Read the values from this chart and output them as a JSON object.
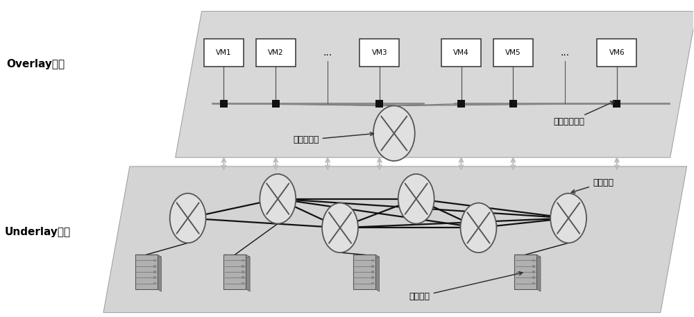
{
  "bg_color": "#ffffff",
  "overlay_panel_color": "#d8d8d8",
  "underlay_panel_color": "#d4d4d4",
  "overlay_label": "Overlay网络",
  "underlay_label": "Underlay网络",
  "logical_router_label": "逻辑路由器",
  "dist_switch_label": "分布式交换机",
  "network_device_label": "网络设备",
  "terminal_device_label": "终端设备",
  "vm_group1": [
    "VM1",
    "VM2",
    "...",
    "VM3"
  ],
  "vm_group2": [
    "VM4",
    "VM5",
    "...",
    "VM6"
  ],
  "node_fill": "#e0e0e0",
  "node_edge": "#555555",
  "vm_fill": "#ffffff",
  "vm_edge": "#333333",
  "square_fill": "#111111",
  "bus_color": "#888888",
  "line_dark": "#111111",
  "line_med": "#777777",
  "arrow_gray": "#bbbbbb",
  "annot_arrow": "#333333",
  "server_fill": "#aaaaaa",
  "server_dark": "#777777"
}
